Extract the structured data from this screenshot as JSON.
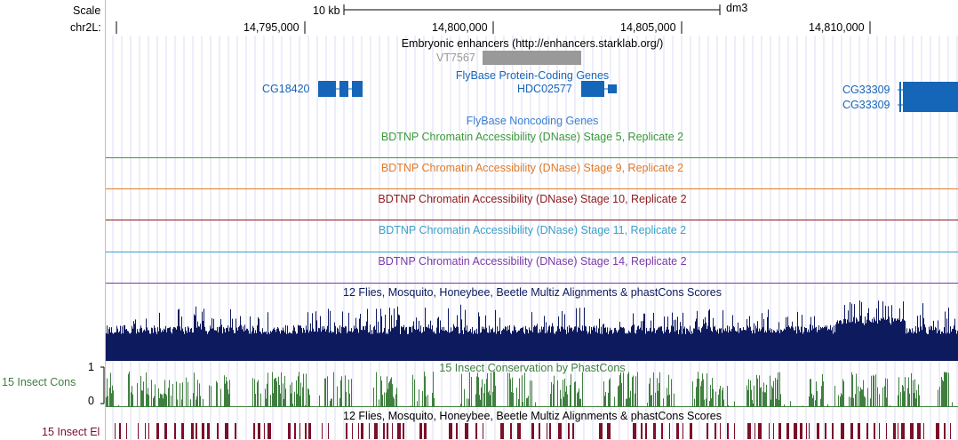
{
  "scale": {
    "label": "Scale",
    "bar_label": "10 kb",
    "assembly": "dm3"
  },
  "ruler": {
    "chrom_label": "chr2L:",
    "ticks": [
      {
        "label": "14,795,000",
        "pos": 14795000
      },
      {
        "label": "14,800,000",
        "pos": 14800000
      },
      {
        "label": "14,805,000",
        "pos": 14805000
      },
      {
        "label": "14,810,000",
        "pos": 14810000
      }
    ]
  },
  "tracks": {
    "enhancers": {
      "title": "Embryonic enhancers (http://enhancers.starklab.org/)",
      "feature": {
        "name": "VT7567",
        "color": "#999999"
      }
    },
    "coding": {
      "title": "FlyBase Protein-Coding Genes",
      "color": "#1565b8",
      "genes": [
        {
          "name": "CG18420"
        },
        {
          "name": "HDC02577"
        },
        {
          "name": "CG33309"
        },
        {
          "name": "CG33309"
        }
      ]
    },
    "noncoding": {
      "title": "FlyBase Noncoding Genes",
      "color": "#3c7fcf"
    },
    "dnase": [
      {
        "title": "BDTNP Chromatin Accessibility (DNase) Stage 5, Replicate 2",
        "color": "#3a9a3a"
      },
      {
        "title": "BDTNP Chromatin Accessibility (DNase) Stage 9, Replicate 2",
        "color": "#e07a2a"
      },
      {
        "title": "BDTNP Chromatin Accessibility (DNase) Stage 10, Replicate 2",
        "color": "#8b1a1a"
      },
      {
        "title": "BDTNP Chromatin Accessibility (DNase) Stage 11, Replicate 2",
        "color": "#3aa0c8"
      },
      {
        "title": "BDTNP Chromatin Accessibility (DNase) Stage 14, Replicate 2",
        "color": "#7a3aa8"
      }
    ],
    "multiz": {
      "title": "12 Flies, Mosquito, Honeybee, Beetle Multiz Alignments & phastCons Scores",
      "color": "#0d1a5e"
    },
    "cons15": {
      "title": "15 Insect Conservation by PhastCons",
      "side_label": "15 Insect Cons",
      "axis_max": "1",
      "axis_min": "0",
      "color": "#3f7f3f"
    },
    "multiz2": {
      "title": "12 Flies, Mosquito, Honeybee, Beetle Multiz Alignments & phastCons Scores",
      "side_label": "15 Insect El",
      "color": "#7a0f2a"
    }
  }
}
